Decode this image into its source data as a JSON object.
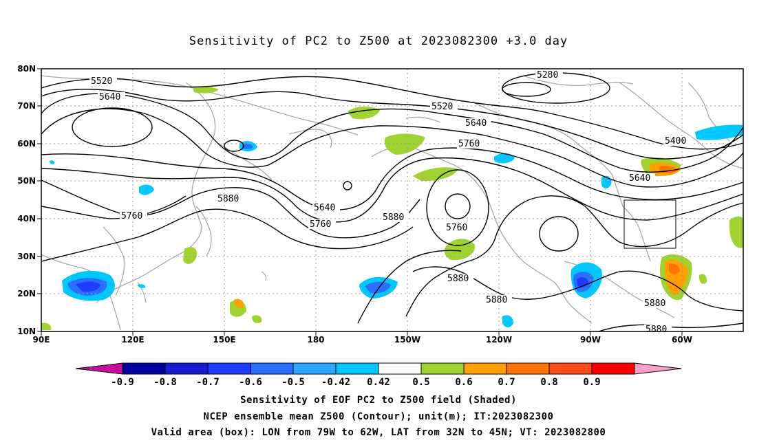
{
  "title": "Sensitivity of PC2 to Z500 at 2023082300 +3.0 day",
  "lat_labels": [
    "80N",
    "70N",
    "60N",
    "50N",
    "40N",
    "30N",
    "20N",
    "10N"
  ],
  "lon_labels": [
    "90E",
    "120E",
    "150E",
    "180",
    "150W",
    "120W",
    "90W",
    "60W"
  ],
  "contour_labels": [
    "5280",
    "5520",
    "5640",
    "5520",
    "5640",
    "5760",
    "5400",
    "5640",
    "5880",
    "5760",
    "5640",
    "5760",
    "5880",
    "5760",
    "5880",
    "5880",
    "5880",
    "5880"
  ],
  "colorbar": {
    "ticks": [
      "-0.9",
      "-0.8",
      "-0.7",
      "-0.6",
      "-0.5",
      "-0.42",
      "0.42",
      "0.5",
      "0.6",
      "0.7",
      "0.8",
      "0.9"
    ],
    "colors": [
      "#c80f9a",
      "#0000a0",
      "#1a1ad0",
      "#1e3cff",
      "#2a6fff",
      "#28a8ff",
      "#00c8ff",
      "#ffffff",
      "#a0d232",
      "#ffa000",
      "#ff7300",
      "#ff4a1a",
      "#ff0000",
      "#f7a0c8"
    ]
  },
  "shading_colors": {
    "light_blue": "#00c8ff",
    "blue": "#2a6fff",
    "dark_blue": "#1e3cff",
    "green": "#a0d232",
    "orange": "#ffa000",
    "red_orange": "#ff7300"
  },
  "captions": {
    "line1": "Sensitivity of EOF PC2 to Z500 field (Shaded)",
    "line2": "NCEP ensemble mean Z500 (Contour); unit(m); IT:2023082300",
    "line3": "Valid area (box): LON from 79W to 62W, LAT from 32N to 45N; VT: 2023082800"
  }
}
